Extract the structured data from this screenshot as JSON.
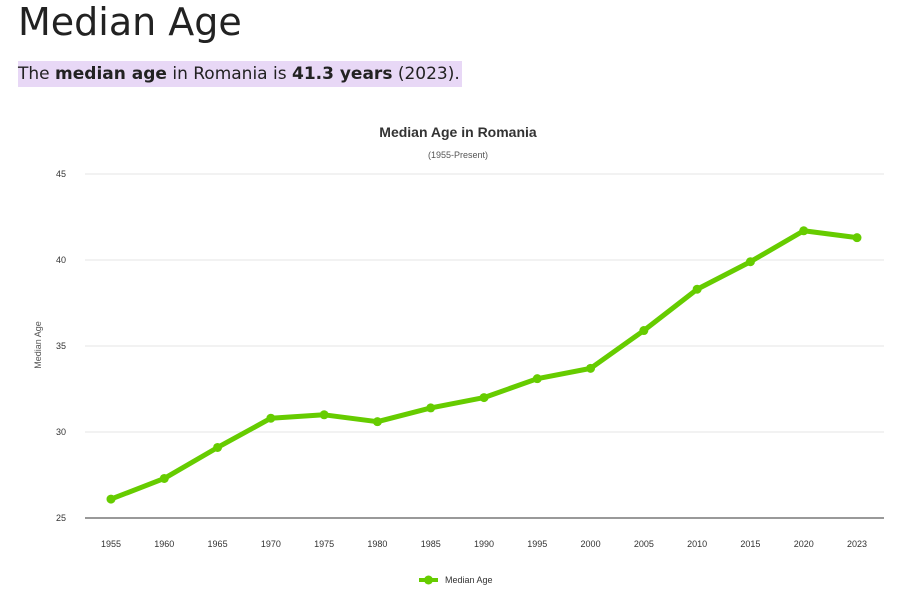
{
  "page": {
    "title": "Median Age",
    "summary": {
      "prefix": "The ",
      "bold1": "median age",
      "middle": " in Romania is ",
      "bold2": "41.3 years",
      "suffix": " (2023)."
    }
  },
  "chart_data": {
    "type": "line",
    "title": "Median Age in Romania",
    "subtitle": "(1955-Present)",
    "xlabel": "",
    "ylabel": "Median Age",
    "categories": [
      "1955",
      "1960",
      "1965",
      "1970",
      "1975",
      "1980",
      "1985",
      "1990",
      "1995",
      "2000",
      "2005",
      "2010",
      "2015",
      "2020",
      "2023"
    ],
    "series": [
      {
        "name": "Median Age",
        "values": [
          26.1,
          27.3,
          29.1,
          30.8,
          31.0,
          30.6,
          31.4,
          32.0,
          33.1,
          33.7,
          35.9,
          38.3,
          39.9,
          41.7,
          41.3
        ],
        "color": "#66cc00"
      }
    ],
    "ylim": [
      25,
      45
    ],
    "yticks": [
      25,
      30,
      35,
      40,
      45
    ],
    "grid": true,
    "legend": "bottom-center"
  }
}
